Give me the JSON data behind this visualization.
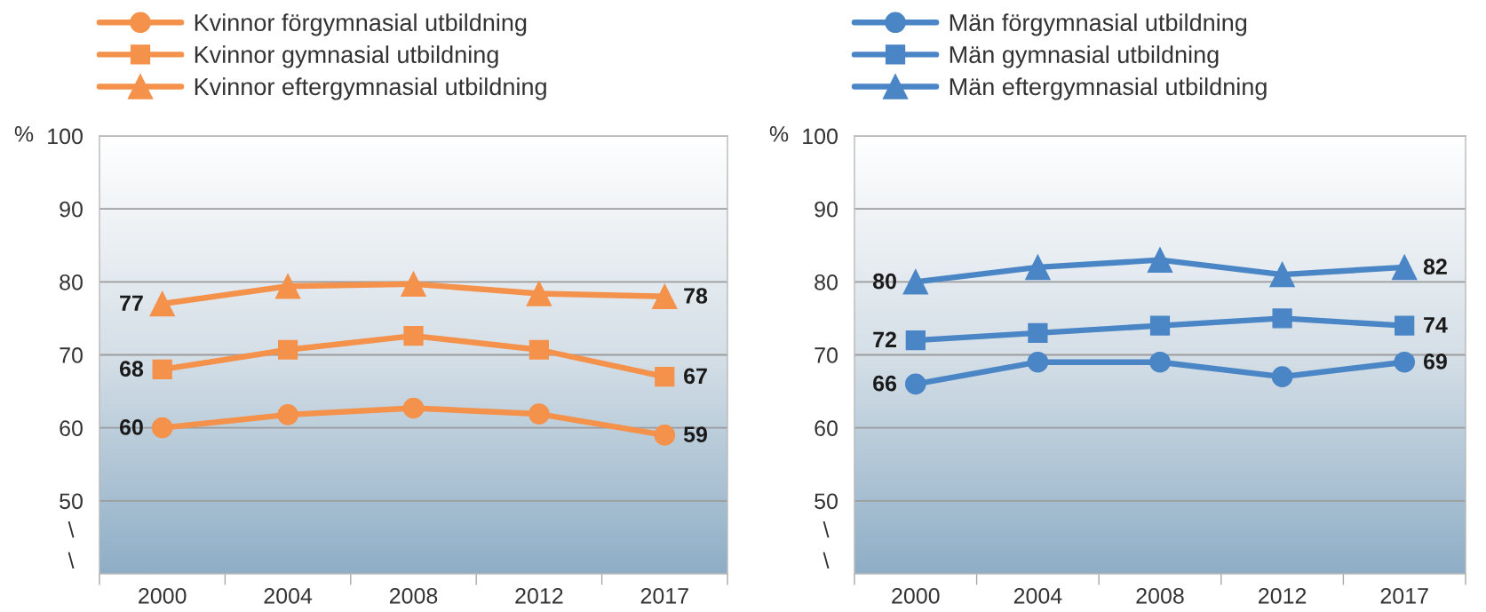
{
  "chart_data": [
    {
      "type": "line",
      "categories": [
        "2000",
        "2004",
        "2008",
        "2012",
        "2017"
      ],
      "ylabel": "%",
      "ylim": [
        40,
        100
      ],
      "yticks": [
        50,
        60,
        70,
        80,
        90,
        100
      ],
      "grid": "y",
      "legend": "top left",
      "line_style": "solid",
      "annotations": [
        "\\",
        "\\"
      ],
      "series": [
        {
          "name": "Kvinnor förgymnasial utbildning",
          "color": "#f4914b",
          "marker": "circle",
          "values": [
            60,
            61.8,
            62.7,
            61.9,
            59
          ],
          "value_labels": [
            "60",
            null,
            null,
            null,
            "59"
          ]
        },
        {
          "name": "Kvinnor gymnasial utbildning",
          "color": "#f4914b",
          "marker": "square",
          "values": [
            68,
            70.7,
            72.6,
            70.7,
            67
          ],
          "value_labels": [
            "68",
            null,
            null,
            null,
            "67"
          ]
        },
        {
          "name": "Kvinnor eftergymnasial utbildning",
          "color": "#f4914b",
          "marker": "triangle",
          "values": [
            77,
            79.4,
            79.7,
            78.4,
            78
          ],
          "value_labels": [
            "77",
            null,
            null,
            null,
            "78"
          ]
        }
      ]
    },
    {
      "type": "line",
      "categories": [
        "2000",
        "2004",
        "2008",
        "2012",
        "2017"
      ],
      "ylabel": "%",
      "ylim": [
        40,
        100
      ],
      "yticks": [
        50,
        60,
        70,
        80,
        90,
        100
      ],
      "grid": "y",
      "legend": "top left",
      "line_style": "solid",
      "annotations": [
        "\\",
        "\\"
      ],
      "series": [
        {
          "name": "Män förgymnasial utbildning",
          "color": "#4a85c6",
          "marker": "circle",
          "values": [
            66,
            69,
            69,
            67,
            69
          ],
          "value_labels": [
            "66",
            null,
            null,
            null,
            "69"
          ]
        },
        {
          "name": "Män gymnasial utbildning",
          "color": "#4a85c6",
          "marker": "square",
          "values": [
            72,
            73,
            74,
            75,
            74
          ],
          "value_labels": [
            "72",
            null,
            null,
            null,
            "74"
          ]
        },
        {
          "name": "Män eftergymnasial utbildning",
          "color": "#4a85c6",
          "marker": "triangle",
          "values": [
            80,
            82,
            83,
            81,
            82
          ],
          "value_labels": [
            "80",
            null,
            null,
            null,
            "82"
          ]
        }
      ]
    }
  ]
}
